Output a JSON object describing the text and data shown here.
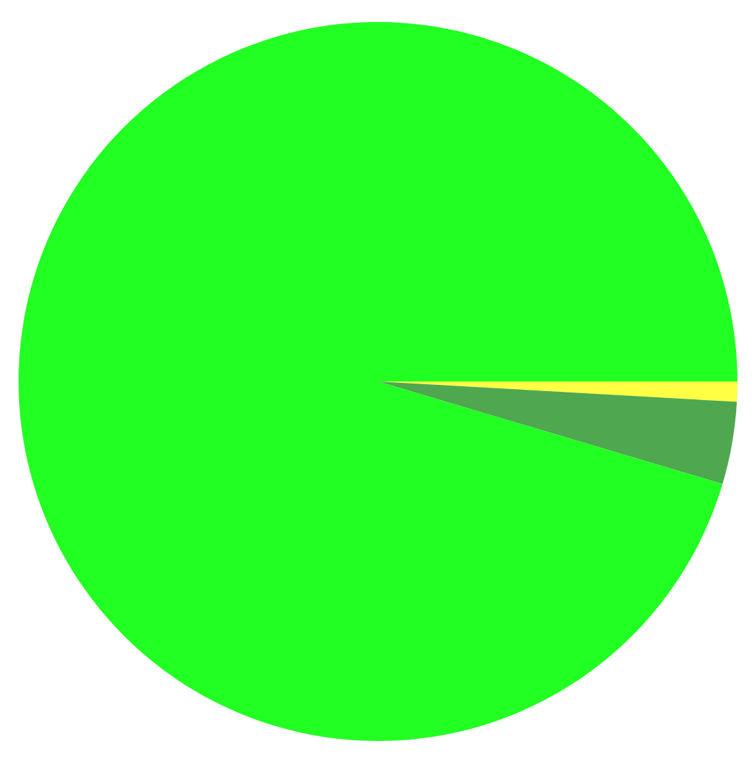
{
  "chart_data": {
    "type": "pie",
    "categories": [
      null,
      null,
      null
    ],
    "values": [
      0.9,
      3.7,
      95.4
    ],
    "colors": [
      "#ffff44",
      "#4fa84f",
      "#22ff22"
    ]
  }
}
